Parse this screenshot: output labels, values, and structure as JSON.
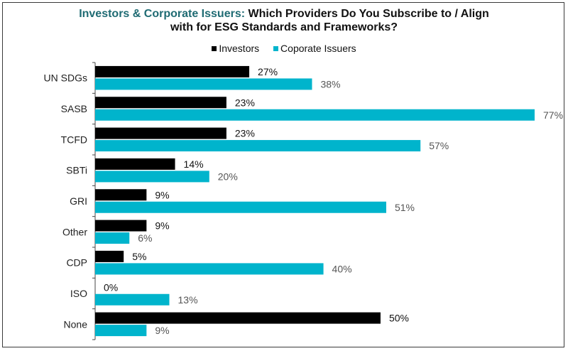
{
  "chart_data": {
    "type": "bar",
    "orientation": "horizontal",
    "title_accent": "Investors & Corporate Issuers:",
    "title_rest_line1": " Which Providers Do You Subscribe to / Align",
    "title_line2": "with for ESG Standards and Frameworks?",
    "title": "Investors & Corporate Issuers: Which Providers Do You Subscribe to / Align with for ESG Standards and Frameworks?",
    "xlabel": "",
    "ylabel": "",
    "xlim": [
      0,
      80
    ],
    "grid": false,
    "legend_position": "top-center",
    "categories": [
      "UN SDGs",
      "SASB",
      "TCFD",
      "SBTi",
      "GRI",
      "Other",
      "CDP",
      "ISO",
      "None"
    ],
    "series": [
      {
        "name": "Investors",
        "color": "#000000",
        "label_color": "#111111",
        "values": [
          27,
          23,
          23,
          14,
          9,
          9,
          5,
          0,
          50
        ],
        "labels": [
          "27%",
          "23%",
          "23%",
          "14%",
          "9%",
          "9%",
          "5%",
          "0%",
          "50%"
        ]
      },
      {
        "name": "Coporate Issuers",
        "color": "#00b4cc",
        "label_color": "#555555",
        "values": [
          38,
          77,
          57,
          20,
          51,
          6,
          40,
          13,
          9
        ],
        "labels": [
          "38%",
          "77%",
          "57%",
          "20%",
          "51%",
          "6%",
          "40%",
          "13%",
          "9%"
        ]
      }
    ],
    "title_accent_color": "#1f6b73"
  }
}
